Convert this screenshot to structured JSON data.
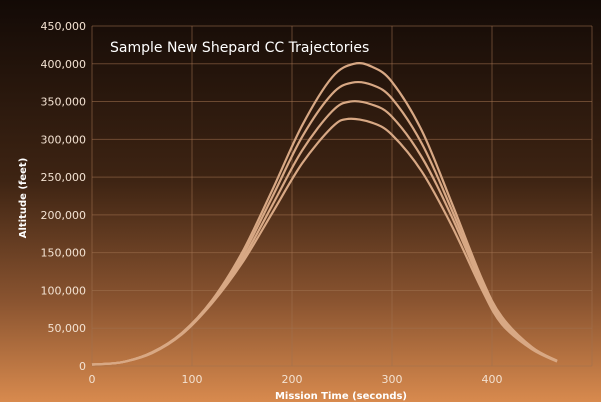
{
  "chart_data": {
    "type": "line",
    "title": "Sample New Shepard CC Trajectories",
    "xlabel": "Mission Time (seconds)",
    "ylabel": "Altitude (feet)",
    "xlim": [
      0,
      500
    ],
    "ylim": [
      0,
      450000
    ],
    "x_ticks": [
      "0",
      "100",
      "200",
      "300",
      "400"
    ],
    "y_ticks": [
      "0",
      "50,000",
      "100,000",
      "150,000",
      "200,000",
      "250,000",
      "300,000",
      "350,000",
      "400,000",
      "450,000"
    ],
    "grid": true,
    "colors": {
      "line": "#d8a884",
      "background_top": "#130a06",
      "background_bottom": "#d88a4e"
    },
    "series": [
      {
        "x": [
          0,
          30,
          60,
          90,
          120,
          150,
          180,
          210,
          240,
          262,
          280,
          300,
          330,
          360,
          390,
          410,
          440,
          465
        ],
        "values": [
          2000,
          5000,
          18000,
          44000,
          87000,
          150000,
          232000,
          318000,
          382000,
          400000,
          396000,
          376000,
          311000,
          215000,
          115000,
          65000,
          25000,
          7000
        ]
      },
      {
        "x": [
          0,
          30,
          60,
          90,
          120,
          150,
          180,
          210,
          240,
          260,
          280,
          300,
          330,
          360,
          390,
          410,
          440,
          465
        ],
        "values": [
          2000,
          5000,
          18000,
          43000,
          85000,
          145000,
          223000,
          303000,
          360000,
          375000,
          372000,
          354000,
          294000,
          206000,
          110000,
          62000,
          24000,
          7000
        ]
      },
      {
        "x": [
          0,
          30,
          60,
          90,
          120,
          150,
          180,
          210,
          240,
          258,
          280,
          300,
          330,
          360,
          390,
          410,
          440,
          465
        ],
        "values": [
          2000,
          5000,
          18000,
          43000,
          84000,
          140000,
          212000,
          285000,
          337000,
          350000,
          346000,
          330000,
          276000,
          197000,
          106000,
          58000,
          23000,
          6000
        ]
      },
      {
        "x": [
          0,
          30,
          60,
          90,
          120,
          150,
          180,
          210,
          240,
          256,
          280,
          300,
          330,
          360,
          390,
          410,
          440,
          465
        ],
        "values": [
          2000,
          5000,
          17000,
          42000,
          83000,
          136000,
          202000,
          268000,
          316000,
          327000,
          322000,
          306000,
          257000,
          185000,
          101000,
          55000,
          22000,
          6000
        ]
      }
    ]
  }
}
